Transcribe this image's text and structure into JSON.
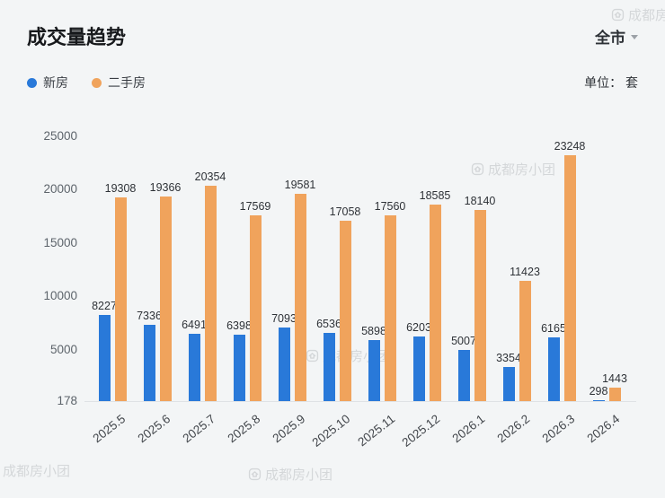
{
  "header": {
    "title": "成交量趋势",
    "city": "全市",
    "unit": "单位： 套"
  },
  "legend": [
    {
      "label": "新房",
      "color": "#2979d9"
    },
    {
      "label": "二手房",
      "color": "#f0a35c"
    }
  ],
  "watermark": {
    "text": "成都房小团"
  },
  "chart_data": {
    "type": "bar",
    "title": "成交量趋势",
    "unit": "套",
    "categories": [
      "2025.5",
      "2025.6",
      "2025.7",
      "2025.8",
      "2025.9",
      "2025.10",
      "2025.11",
      "2025.12",
      "2026.1",
      "2026.2",
      "2026.3",
      "2026.4"
    ],
    "series": [
      {
        "name": "新房",
        "color": "#2979d9",
        "values": [
          8227,
          7336,
          6491,
          6398,
          7093,
          6536,
          5898,
          6203,
          5007,
          3354,
          6165,
          298
        ]
      },
      {
        "name": "二手房",
        "color": "#f0a35c",
        "values": [
          19308,
          19366,
          20354,
          17569,
          19581,
          17058,
          17560,
          18585,
          18140,
          11423,
          23248,
          1443
        ]
      }
    ],
    "ylim": [
      178,
      25000
    ],
    "yticks": [
      25000,
      20000,
      15000,
      10000,
      5000,
      178
    ],
    "grid": false,
    "legend_position": "top-left",
    "xlabel": "",
    "ylabel": ""
  }
}
